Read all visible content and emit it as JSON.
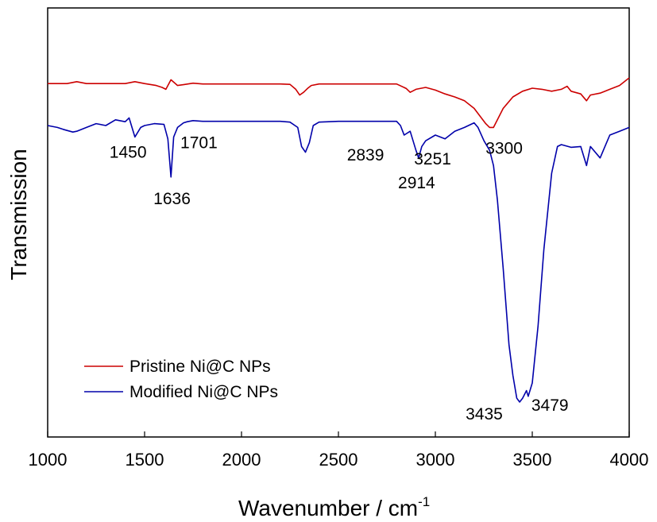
{
  "chart_data": {
    "type": "line",
    "xlabel": "Wavenumber / cm",
    "xlabel_sup": "-1",
    "ylabel": "Transmission",
    "xlim": [
      1000,
      4000
    ],
    "ylim": [
      0,
      1
    ],
    "xticks": [
      1000,
      1500,
      2000,
      2500,
      3000,
      3500,
      4000
    ],
    "grid": false,
    "legend": "bottom-left",
    "series": [
      {
        "name": "Pristine Ni@C NPs",
        "color": "#cc0000",
        "x": [
          1000,
          1100,
          1150,
          1200,
          1300,
          1400,
          1450,
          1500,
          1560,
          1590,
          1610,
          1636,
          1670,
          1700,
          1750,
          1800,
          1900,
          2000,
          2100,
          2200,
          2250,
          2280,
          2300,
          2320,
          2340,
          2360,
          2400,
          2500,
          2600,
          2700,
          2800,
          2850,
          2870,
          2900,
          2950,
          3000,
          3050,
          3100,
          3150,
          3200,
          3230,
          3260,
          3280,
          3300,
          3320,
          3350,
          3400,
          3450,
          3500,
          3550,
          3600,
          3650,
          3680,
          3700,
          3750,
          3780,
          3800,
          3850,
          3900,
          3950,
          4000
        ],
        "y": [
          0.885,
          0.885,
          0.89,
          0.885,
          0.885,
          0.885,
          0.89,
          0.885,
          0.88,
          0.875,
          0.87,
          0.895,
          0.88,
          0.882,
          0.886,
          0.884,
          0.884,
          0.884,
          0.884,
          0.884,
          0.883,
          0.87,
          0.855,
          0.862,
          0.872,
          0.88,
          0.884,
          0.884,
          0.884,
          0.884,
          0.884,
          0.872,
          0.862,
          0.87,
          0.875,
          0.868,
          0.858,
          0.85,
          0.84,
          0.82,
          0.8,
          0.78,
          0.77,
          0.77,
          0.79,
          0.82,
          0.85,
          0.865,
          0.873,
          0.87,
          0.865,
          0.87,
          0.878,
          0.865,
          0.858,
          0.84,
          0.855,
          0.86,
          0.87,
          0.88,
          0.9
        ]
      },
      {
        "name": "Modified Ni@C NPs",
        "color": "#0000aa",
        "x": [
          1000,
          1050,
          1080,
          1100,
          1130,
          1150,
          1200,
          1250,
          1300,
          1350,
          1400,
          1420,
          1450,
          1480,
          1500,
          1550,
          1600,
          1620,
          1636,
          1650,
          1670,
          1701,
          1720,
          1750,
          1800,
          1900,
          2000,
          2100,
          2200,
          2250,
          2290,
          2310,
          2330,
          2350,
          2370,
          2400,
          2500,
          2600,
          2700,
          2800,
          2820,
          2839,
          2870,
          2900,
          2914,
          2930,
          2950,
          3000,
          3050,
          3100,
          3150,
          3200,
          3220,
          3251,
          3280,
          3300,
          3320,
          3350,
          3380,
          3400,
          3420,
          3435,
          3450,
          3470,
          3479,
          3500,
          3530,
          3560,
          3600,
          3630,
          3650,
          3700,
          3750,
          3780,
          3800,
          3850,
          3900,
          3950,
          4000
        ],
        "y": [
          0.775,
          0.77,
          0.765,
          0.762,
          0.758,
          0.76,
          0.77,
          0.78,
          0.775,
          0.79,
          0.785,
          0.795,
          0.745,
          0.77,
          0.775,
          0.78,
          0.778,
          0.74,
          0.64,
          0.745,
          0.77,
          0.782,
          0.785,
          0.788,
          0.786,
          0.786,
          0.786,
          0.786,
          0.786,
          0.784,
          0.77,
          0.72,
          0.705,
          0.73,
          0.775,
          0.784,
          0.786,
          0.786,
          0.786,
          0.786,
          0.775,
          0.75,
          0.76,
          0.71,
          0.69,
          0.72,
          0.735,
          0.75,
          0.74,
          0.76,
          0.77,
          0.782,
          0.77,
          0.735,
          0.71,
          0.67,
          0.58,
          0.4,
          0.2,
          0.12,
          0.06,
          0.05,
          0.06,
          0.08,
          0.065,
          0.1,
          0.25,
          0.45,
          0.65,
          0.72,
          0.725,
          0.718,
          0.72,
          0.67,
          0.72,
          0.69,
          0.75,
          0.76,
          0.77
        ]
      }
    ],
    "annotations": [
      {
        "text": "1450",
        "x": 1450,
        "y": 0.745
      },
      {
        "text": "1701",
        "x": 1701,
        "y": 0.782
      },
      {
        "text": "1636",
        "x": 1636,
        "y": 0.64
      },
      {
        "text": "2839",
        "x": 2839,
        "y": 0.75
      },
      {
        "text": "2914",
        "x": 2914,
        "y": 0.69
      },
      {
        "text": "3251",
        "x": 3251,
        "y": 0.735
      },
      {
        "text": "3300",
        "x": 3300,
        "y": 0.77
      },
      {
        "text": "3435",
        "x": 3435,
        "y": 0.05
      },
      {
        "text": "3479",
        "x": 3479,
        "y": 0.065
      }
    ]
  }
}
